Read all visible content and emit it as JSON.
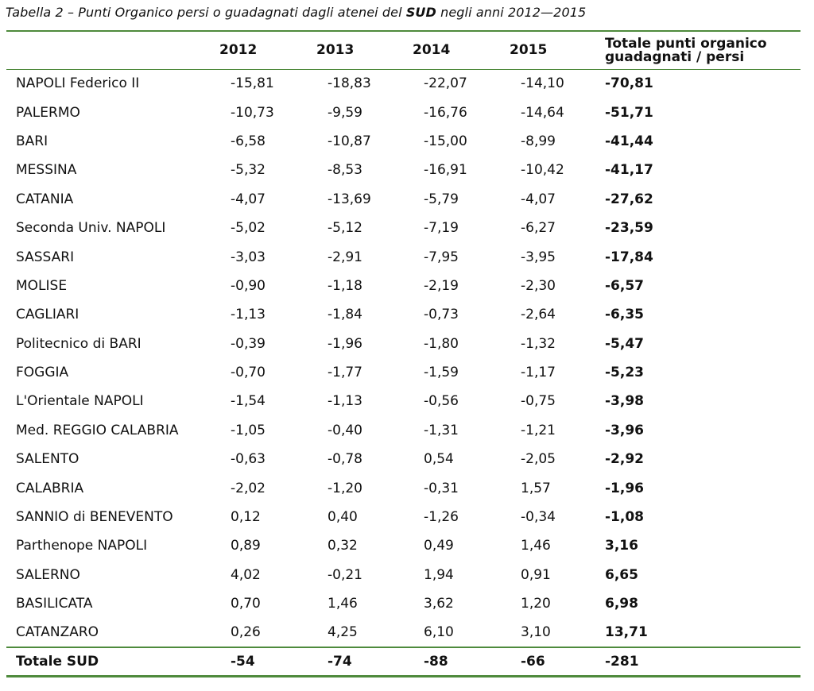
{
  "caption": {
    "prefix": "Tabella 2 – Punti Organico persi o guadagnati dagli atenei del ",
    "bold": "SUD",
    "suffix": " negli anni 2012—2015"
  },
  "headers": {
    "col0": "",
    "col1": "2012",
    "col2": "2013",
    "col3": "2014",
    "col4": "2015",
    "col5_line1": "Totale punti organico",
    "col5_line2": "guadagnati / persi"
  },
  "rows": [
    {
      "name": "NAPOLI Federico II",
      "v2012": "-15,81",
      "v2013": "-18,83",
      "v2014": "-22,07",
      "v2015": "-14,10",
      "total": "-70,81"
    },
    {
      "name": "PALERMO",
      "v2012": "-10,73",
      "v2013": "-9,59",
      "v2014": "-16,76",
      "v2015": "-14,64",
      "total": "-51,71"
    },
    {
      "name": "BARI",
      "v2012": "-6,58",
      "v2013": "-10,87",
      "v2014": "-15,00",
      "v2015": "-8,99",
      "total": "-41,44"
    },
    {
      "name": "MESSINA",
      "v2012": "-5,32",
      "v2013": "-8,53",
      "v2014": "-16,91",
      "v2015": "-10,42",
      "total": "-41,17"
    },
    {
      "name": "CATANIA",
      "v2012": "-4,07",
      "v2013": "-13,69",
      "v2014": "-5,79",
      "v2015": "-4,07",
      "total": "-27,62"
    },
    {
      "name": "Seconda Univ. NAPOLI",
      "v2012": "-5,02",
      "v2013": "-5,12",
      "v2014": "-7,19",
      "v2015": "-6,27",
      "total": "-23,59"
    },
    {
      "name": "SASSARI",
      "v2012": "-3,03",
      "v2013": "-2,91",
      "v2014": "-7,95",
      "v2015": "-3,95",
      "total": "-17,84"
    },
    {
      "name": "MOLISE",
      "v2012": "-0,90",
      "v2013": "-1,18",
      "v2014": "-2,19",
      "v2015": "-2,30",
      "total": "-6,57"
    },
    {
      "name": "CAGLIARI",
      "v2012": "-1,13",
      "v2013": "-1,84",
      "v2014": "-0,73",
      "v2015": "-2,64",
      "total": "-6,35"
    },
    {
      "name": "Politecnico di BARI",
      "v2012": "-0,39",
      "v2013": "-1,96",
      "v2014": "-1,80",
      "v2015": "-1,32",
      "total": "-5,47"
    },
    {
      "name": "FOGGIA",
      "v2012": "-0,70",
      "v2013": "-1,77",
      "v2014": "-1,59",
      "v2015": "-1,17",
      "total": "-5,23"
    },
    {
      "name": "L'Orientale NAPOLI",
      "v2012": "-1,54",
      "v2013": "-1,13",
      "v2014": "-0,56",
      "v2015": "-0,75",
      "total": "-3,98"
    },
    {
      "name": "Med. REGGIO CALABRIA",
      "v2012": "-1,05",
      "v2013": "-0,40",
      "v2014": "-1,31",
      "v2015": "-1,21",
      "total": "-3,96"
    },
    {
      "name": "SALENTO",
      "v2012": "-0,63",
      "v2013": "-0,78",
      "v2014": "0,54",
      "v2015": "-2,05",
      "total": "-2,92"
    },
    {
      "name": "CALABRIA",
      "v2012": "-2,02",
      "v2013": "-1,20",
      "v2014": "-0,31",
      "v2015": "1,57",
      "total": "-1,96"
    },
    {
      "name": "SANNIO di BENEVENTO",
      "v2012": "0,12",
      "v2013": "0,40",
      "v2014": "-1,26",
      "v2015": "-0,34",
      "total": "-1,08"
    },
    {
      "name": "Parthenope NAPOLI",
      "v2012": "0,89",
      "v2013": "0,32",
      "v2014": "0,49",
      "v2015": "1,46",
      "total": "3,16"
    },
    {
      "name": "SALERNO",
      "v2012": "4,02",
      "v2013": "-0,21",
      "v2014": "1,94",
      "v2015": "0,91",
      "total": "6,65"
    },
    {
      "name": "BASILICATA",
      "v2012": "0,70",
      "v2013": "1,46",
      "v2014": "3,62",
      "v2015": "1,20",
      "total": "6,98"
    },
    {
      "name": "CATANZARO",
      "v2012": "0,26",
      "v2013": "4,25",
      "v2014": "6,10",
      "v2015": "3,10",
      "total": "13,71"
    }
  ],
  "footer": {
    "name": "Totale SUD",
    "v2012": "-54",
    "v2013": "-74",
    "v2014": "-88",
    "v2015": "-66",
    "total": "-281"
  },
  "colors": {
    "rule": "#4e8a3c",
    "text": "#111111"
  }
}
